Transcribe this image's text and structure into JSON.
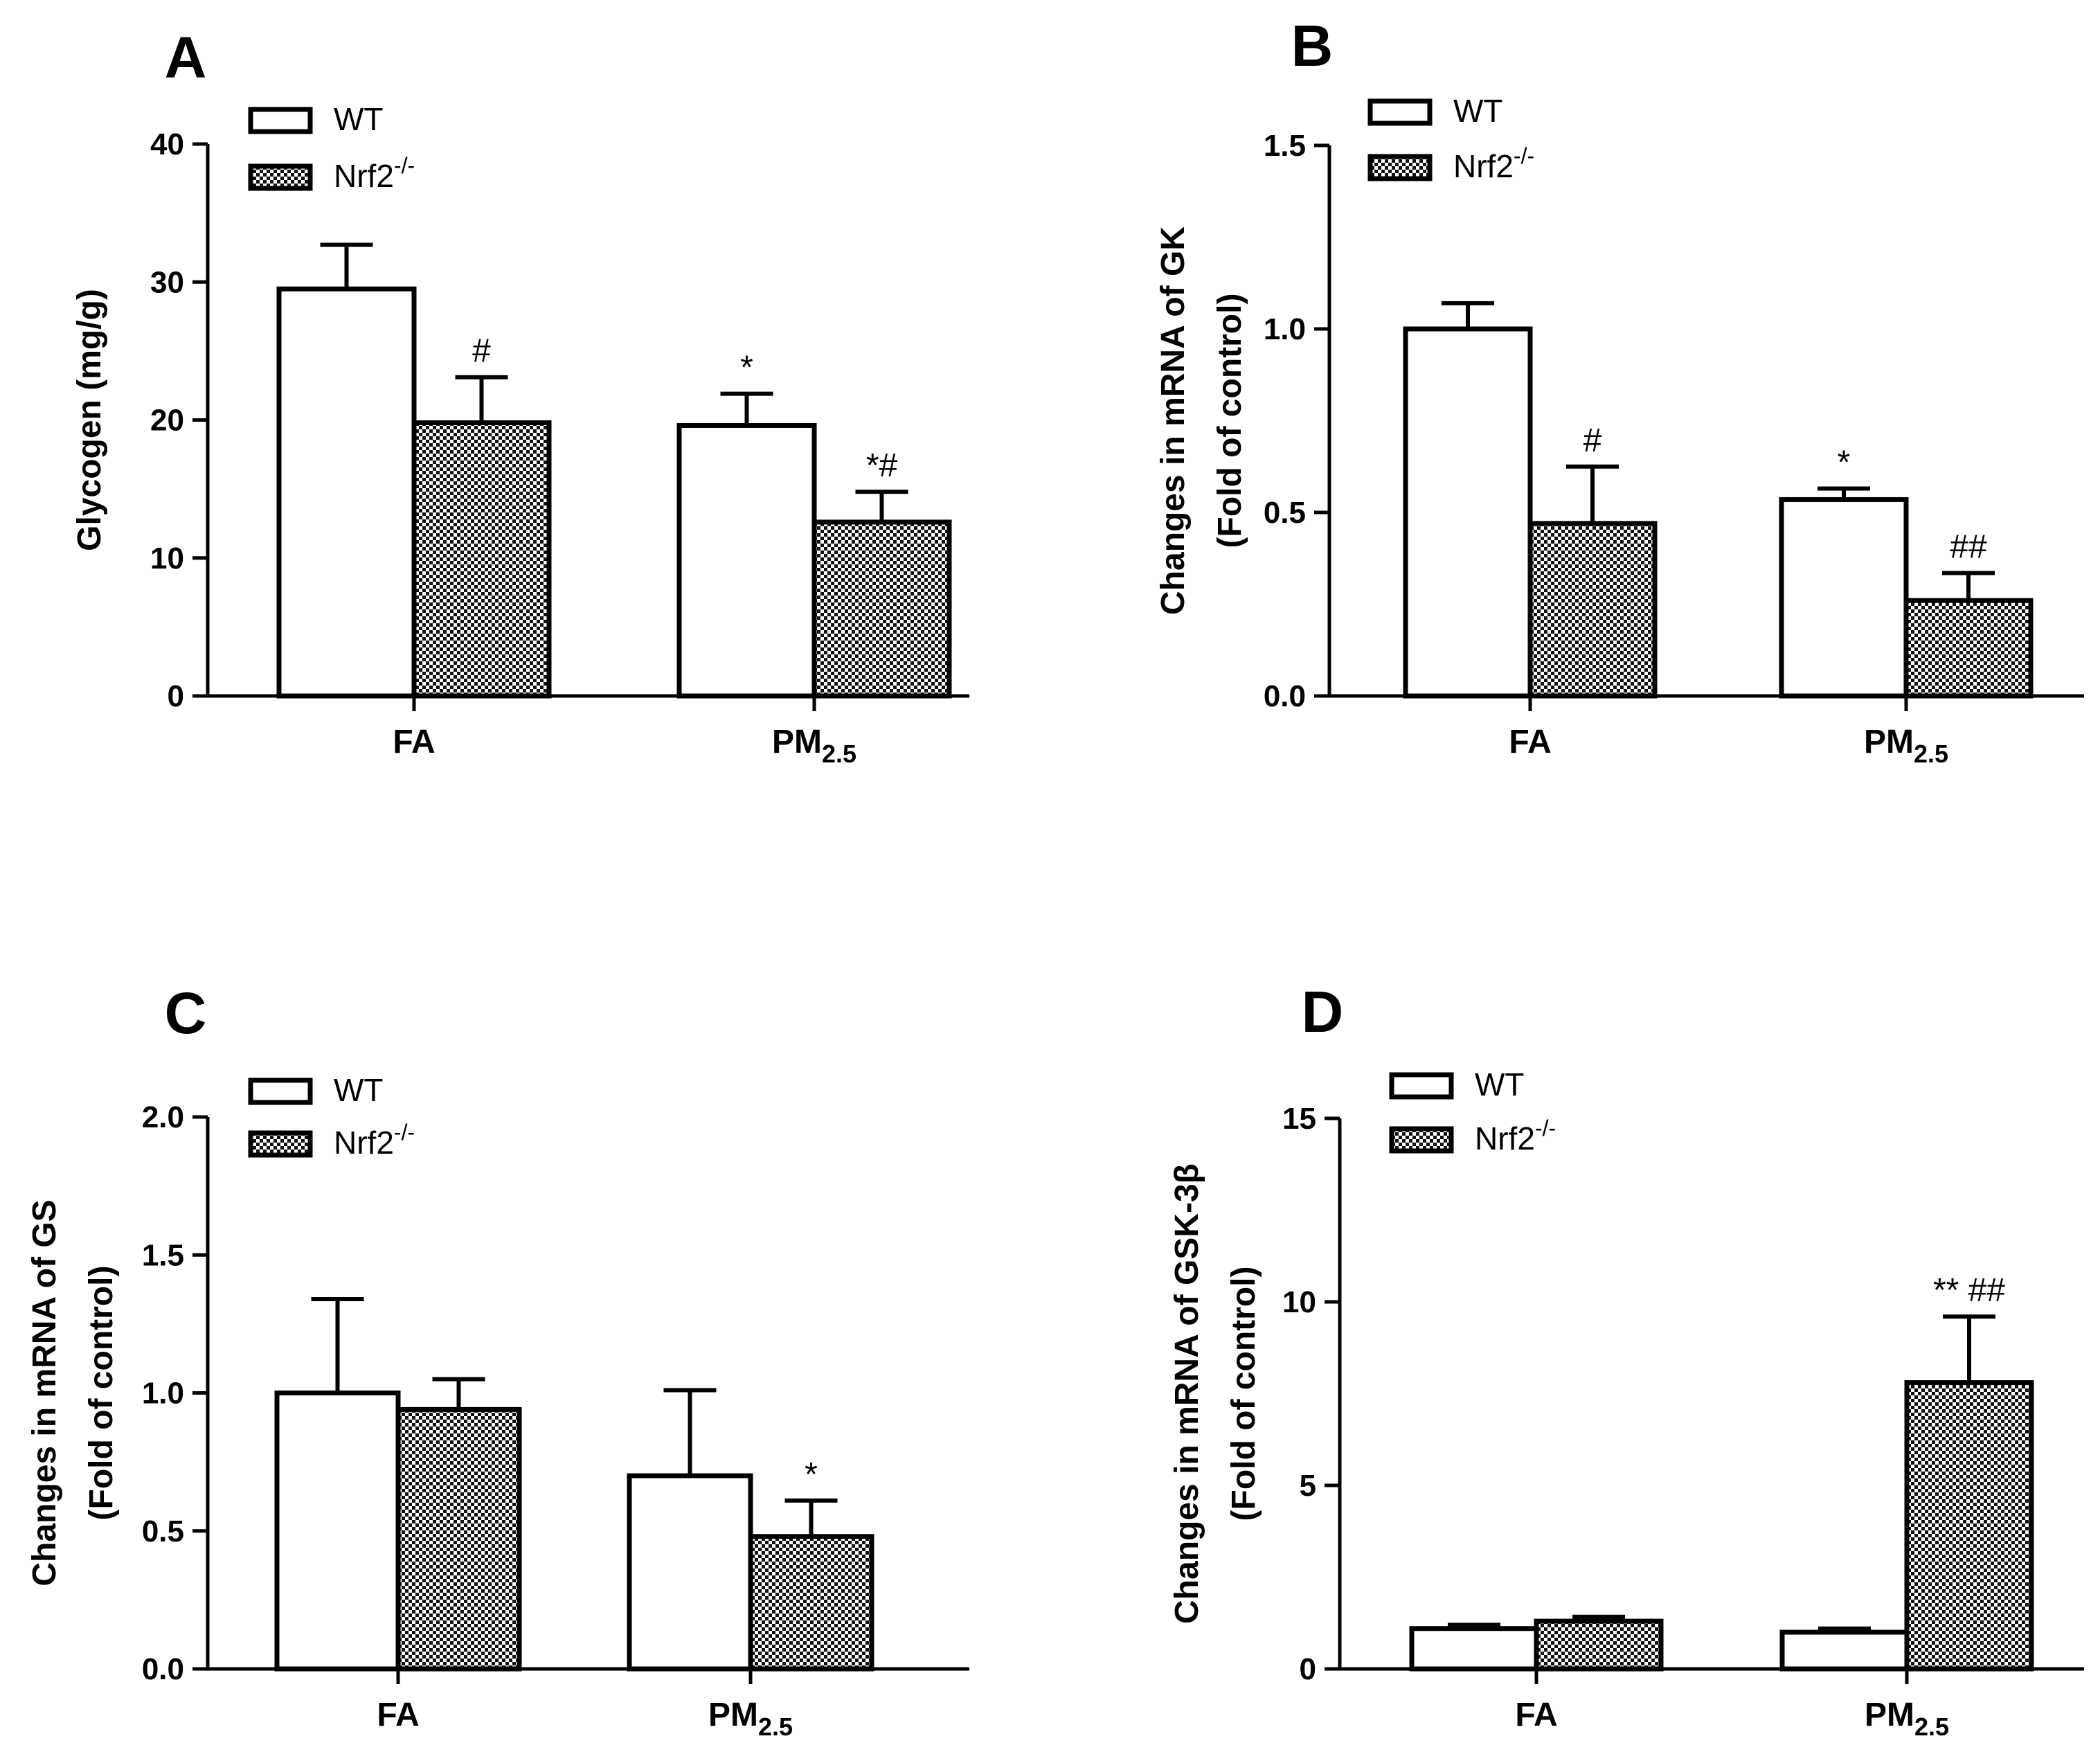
{
  "figure": {
    "legend_labels": {
      "wt": "WT",
      "nrf2": "Nrf2",
      "nrf2_sup": "-/-"
    },
    "colors": {
      "axis": "#000000",
      "wt_fill": "#ffffff",
      "nrf2_pattern_dark": "#111111",
      "nrf2_pattern_light": "#ffffff"
    }
  },
  "chart_data": [
    {
      "panel": "A",
      "type": "bar",
      "ylabel_lines": [
        "Glycogen (mg/g)"
      ],
      "ylim": [
        0,
        40
      ],
      "ticks": [
        0,
        10,
        20,
        30,
        40
      ],
      "tick_labels": [
        "0",
        "10",
        "20",
        "30",
        "40"
      ],
      "categories": [
        {
          "base": "FA",
          "sub": ""
        },
        {
          "base": "PM",
          "sub": "2.5"
        }
      ],
      "series": [
        {
          "name": "WT",
          "values": [
            29.5,
            19.6
          ],
          "errors": [
            3.2,
            2.3
          ],
          "annotations": [
            "",
            "*"
          ]
        },
        {
          "name": "Nrf2-/-",
          "values": [
            19.8,
            12.6
          ],
          "errors": [
            3.3,
            2.2
          ],
          "annotations": [
            "#",
            "*#"
          ]
        }
      ]
    },
    {
      "panel": "B",
      "type": "bar",
      "ylabel_lines": [
        "Changes in mRNA of GK",
        "(Fold of control)"
      ],
      "ylim": [
        0,
        1.5
      ],
      "ticks": [
        0,
        0.5,
        1.0,
        1.5
      ],
      "tick_labels": [
        "0.0",
        "0.5",
        "1.0",
        "1.5"
      ],
      "categories": [
        {
          "base": "FA",
          "sub": ""
        },
        {
          "base": "PM",
          "sub": "2.5"
        }
      ],
      "series": [
        {
          "name": "WT",
          "values": [
            1.0,
            0.535
          ],
          "errors": [
            0.07,
            0.03
          ],
          "annotations": [
            "",
            "*"
          ]
        },
        {
          "name": "Nrf2-/-",
          "values": [
            0.47,
            0.26
          ],
          "errors": [
            0.155,
            0.075
          ],
          "annotations": [
            "#",
            "##"
          ]
        }
      ]
    },
    {
      "panel": "C",
      "type": "bar",
      "ylabel_lines": [
        "Changes in mRNA of GS",
        "(Fold of control)"
      ],
      "ylim": [
        0,
        2.0
      ],
      "ticks": [
        0,
        0.5,
        1.0,
        1.5,
        2.0
      ],
      "tick_labels": [
        "0.0",
        "0.5",
        "1.0",
        "1.5",
        "2.0"
      ],
      "categories": [
        {
          "base": "FA",
          "sub": ""
        },
        {
          "base": "PM",
          "sub": "2.5"
        }
      ],
      "series": [
        {
          "name": "WT",
          "values": [
            1.0,
            0.7
          ],
          "errors": [
            0.34,
            0.31
          ],
          "annotations": [
            "",
            ""
          ]
        },
        {
          "name": "Nrf2-/-",
          "values": [
            0.94,
            0.48
          ],
          "errors": [
            0.11,
            0.13
          ],
          "annotations": [
            "",
            "*"
          ]
        }
      ]
    },
    {
      "panel": "D",
      "type": "bar",
      "ylabel_lines": [
        "Changes in mRNA of GSK-3β",
        "(Fold of control)"
      ],
      "ylim": [
        0,
        15
      ],
      "ticks": [
        0,
        5,
        10,
        15
      ],
      "tick_labels": [
        "0",
        "5",
        "10",
        "15"
      ],
      "categories": [
        {
          "base": "FA",
          "sub": ""
        },
        {
          "base": "PM",
          "sub": "2.5"
        }
      ],
      "series": [
        {
          "name": "WT",
          "values": [
            1.1,
            1.0
          ],
          "errors": [
            0.1,
            0.1
          ],
          "annotations": [
            "",
            ""
          ]
        },
        {
          "name": "Nrf2-/-",
          "values": [
            1.3,
            7.8
          ],
          "errors": [
            0.12,
            1.8
          ],
          "annotations": [
            "",
            "** ##"
          ]
        }
      ]
    }
  ]
}
